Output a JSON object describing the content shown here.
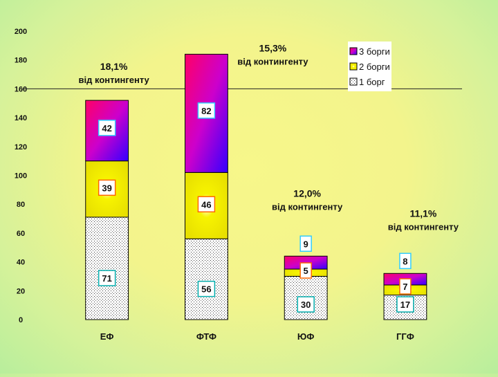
{
  "chart_data": {
    "type": "bar",
    "stacked": true,
    "categories": [
      "ЕФ",
      "ФТФ",
      "ЮФ",
      "ГГФ"
    ],
    "series": [
      {
        "name": "1 борг",
        "values": [
          71,
          56,
          30,
          17
        ],
        "color": "#ffffff",
        "pattern": "dots"
      },
      {
        "name": "2 борги",
        "values": [
          39,
          46,
          5,
          7
        ],
        "color": "#f5ef00",
        "pattern": "radial"
      },
      {
        "name": "3 борги",
        "values": [
          42,
          82,
          9,
          8
        ],
        "color": "#cc00cc",
        "pattern": "gradient-magenta-blue"
      }
    ],
    "ylim": [
      0,
      200
    ],
    "yticks": [
      "0",
      "20",
      "40",
      "60",
      "80",
      "100",
      "120",
      "140",
      "160",
      "180",
      "200"
    ],
    "reference_line": 160,
    "annotations": [
      {
        "category": "ЕФ",
        "percent": "18,1%",
        "text": "від контингенту"
      },
      {
        "category": "ФТФ",
        "percent": "15,3%",
        "text": "від контингенту"
      },
      {
        "category": "ЮФ",
        "percent": "12,0%",
        "text": "від контингенту"
      },
      {
        "category": "ГГФ",
        "percent": "11,1%",
        "text": "від контингенту"
      }
    ],
    "legend_position": "top-right",
    "title": "",
    "xlabel": "",
    "ylabel": ""
  }
}
